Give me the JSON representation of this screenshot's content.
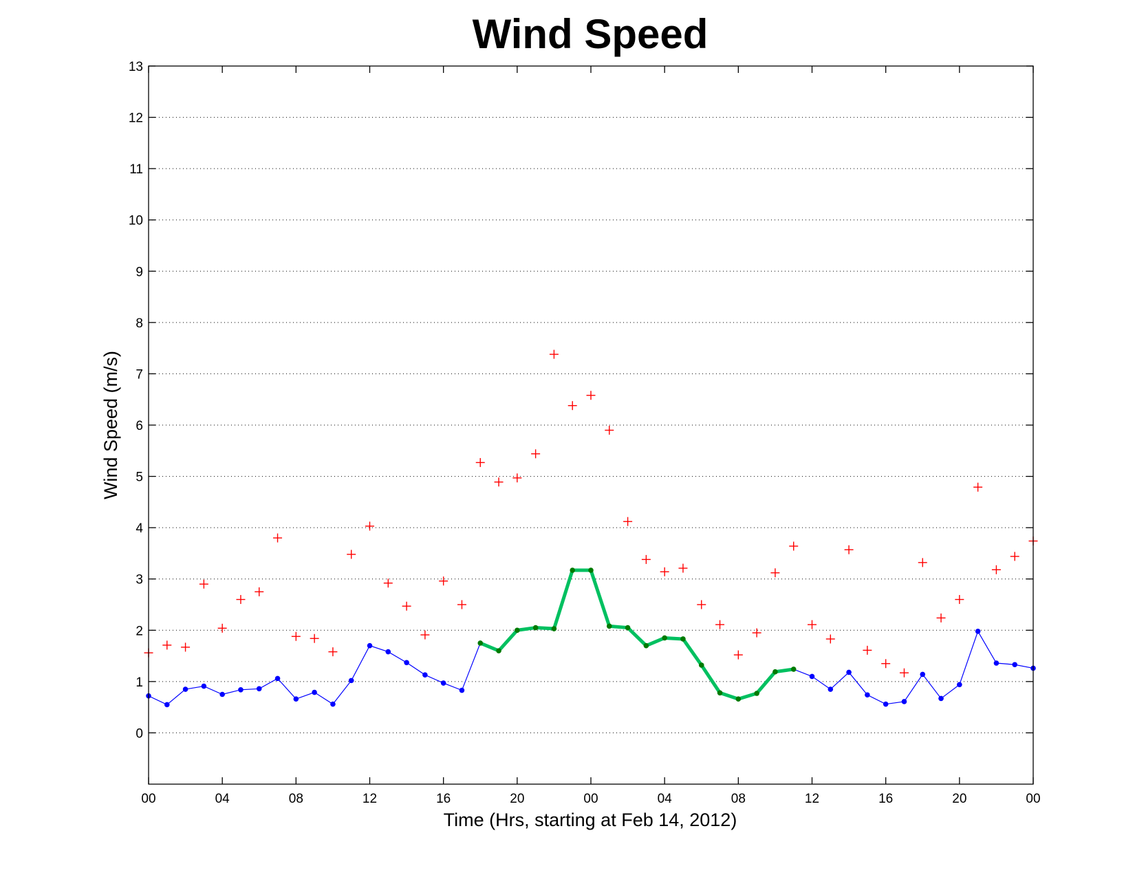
{
  "chart_data": {
    "type": "line",
    "title": "Wind Speed",
    "xlabel": "Time (Hrs, starting at Feb 14, 2012)",
    "ylabel": "Wind Speed (m/s)",
    "x": [
      0,
      1,
      2,
      3,
      4,
      5,
      6,
      7,
      8,
      9,
      10,
      11,
      12,
      13,
      14,
      15,
      16,
      17,
      18,
      19,
      20,
      21,
      22,
      23,
      24,
      25,
      26,
      27,
      28,
      29,
      30,
      31,
      32,
      33,
      34,
      35,
      36,
      37,
      38,
      39,
      40,
      41,
      42,
      43,
      44,
      45,
      46,
      47,
      48
    ],
    "xlim": [
      0,
      48
    ],
    "ylim": [
      -1,
      13
    ],
    "yticks": [
      0,
      1,
      2,
      3,
      4,
      5,
      6,
      7,
      8,
      9,
      10,
      11,
      12,
      13
    ],
    "xtick_positions": [
      0,
      4,
      8,
      12,
      16,
      20,
      24,
      28,
      32,
      36,
      40,
      44,
      48
    ],
    "xtick_labels": [
      "00",
      "04",
      "08",
      "12",
      "16",
      "20",
      "00",
      "04",
      "08",
      "12",
      "16",
      "20",
      "00"
    ],
    "grid": true,
    "colors": {
      "blue": "#0000ff",
      "red": "#ff0000",
      "green": "#00c060",
      "green_marker": "#007a00"
    },
    "series": [
      {
        "style": "blue-line-dots",
        "color": "#0000ff",
        "values": [
          0.72,
          0.55,
          0.85,
          0.91,
          0.75,
          0.84,
          0.86,
          1.06,
          0.66,
          0.79,
          0.56,
          1.02,
          1.7,
          1.58,
          1.37,
          1.13,
          0.97,
          0.83,
          1.75,
          1.6,
          2.0,
          2.05,
          2.03,
          3.17,
          3.17,
          2.08,
          2.05,
          1.7,
          1.85,
          1.83,
          1.32,
          0.78,
          0.66,
          0.77,
          1.19,
          1.24,
          1.1,
          0.85,
          1.18,
          0.74,
          0.56,
          0.61,
          1.14,
          0.67,
          0.94,
          1.98,
          1.36,
          1.33,
          1.26
        ]
      },
      {
        "style": "red-plus",
        "color": "#ff0000",
        "values": [
          1.56,
          1.71,
          1.67,
          2.9,
          2.04,
          2.6,
          2.75,
          3.8,
          1.88,
          1.84,
          1.58,
          3.48,
          4.03,
          2.92,
          2.47,
          1.91,
          2.96,
          2.5,
          5.27,
          4.89,
          4.97,
          5.44,
          7.38,
          6.38,
          6.58,
          5.9,
          4.12,
          3.38,
          3.14,
          3.21,
          2.5,
          2.11,
          1.52,
          1.95,
          3.12,
          3.64,
          2.11,
          1.83,
          3.57,
          1.61,
          1.35,
          1.17,
          3.32,
          2.24,
          2.6,
          4.79,
          3.18,
          3.44,
          3.74
        ]
      },
      {
        "style": "green-thick-line",
        "color": "#00c060",
        "start_index": 18,
        "end_index": 35
      }
    ]
  }
}
